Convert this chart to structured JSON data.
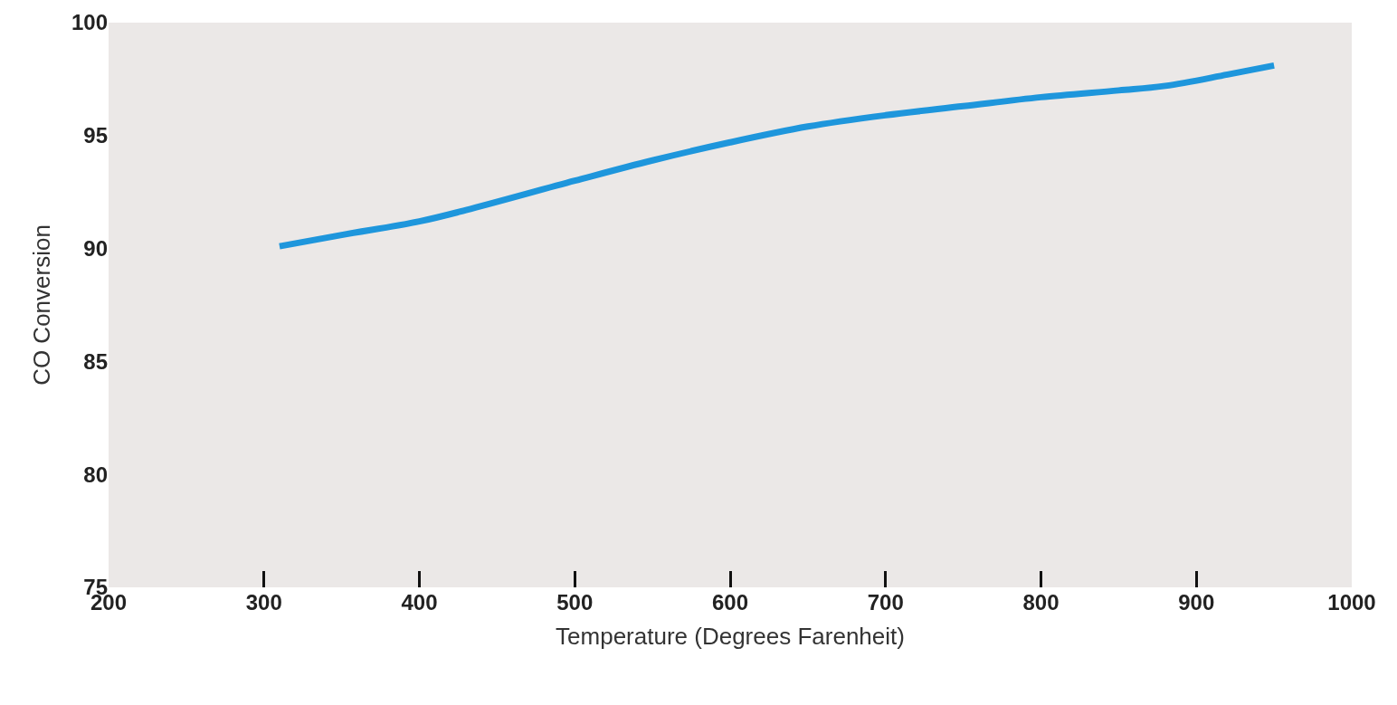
{
  "chart_data": {
    "type": "line",
    "xlabel": "Temperature (Degrees Farenheit)",
    "ylabel": "CO Conversion",
    "x": [
      310,
      350,
      400,
      430,
      500,
      550,
      600,
      650,
      700,
      750,
      800,
      850,
      880,
      920,
      950
    ],
    "series": [
      {
        "color": "#1e96dc",
        "values": [
          90.1,
          90.6,
          91.2,
          91.7,
          93.0,
          93.9,
          94.7,
          95.4,
          95.9,
          96.3,
          96.7,
          97.0,
          97.2,
          97.7,
          98.1
        ]
      }
    ],
    "xlim": [
      200,
      1000
    ],
    "xticks": [
      200,
      300,
      400,
      500,
      600,
      700,
      800,
      900,
      1000
    ],
    "ylim": [
      75,
      100
    ],
    "yticks": [
      75,
      80,
      85,
      90,
      95,
      100
    ],
    "marker": "none",
    "line_style": "solid"
  }
}
